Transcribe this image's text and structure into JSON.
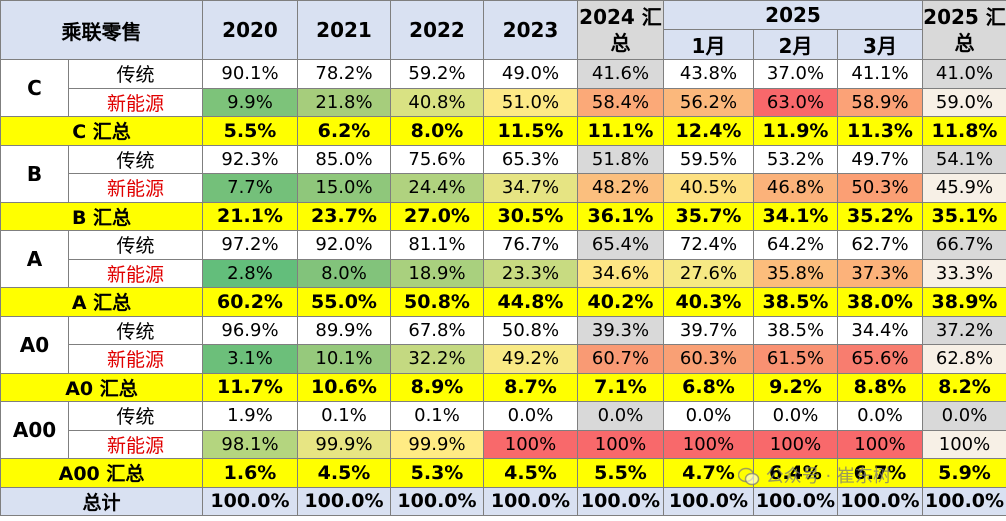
{
  "header": {
    "title": "乘联零售",
    "years": [
      "2020",
      "2021",
      "2022",
      "2023"
    ],
    "total_2024": "2024 汇总",
    "year_2025": "2025",
    "months": [
      "1月",
      "2月",
      "3月"
    ],
    "total_2025": "2025 汇总"
  },
  "row_labels": {
    "traditional": "传统",
    "nev": "新能源"
  },
  "segments": [
    {
      "name": "C",
      "traditional": [
        "90.1%",
        "78.2%",
        "59.2%",
        "49.0%",
        "41.6%",
        "43.8%",
        "37.0%",
        "41.1%",
        "41.0%"
      ],
      "nev": [
        "9.9%",
        "21.8%",
        "40.8%",
        "51.0%",
        "58.4%",
        "56.2%",
        "63.0%",
        "58.9%",
        "59.0%"
      ],
      "sum_label": "C 汇总",
      "sum": [
        "5.5%",
        "6.2%",
        "8.0%",
        "11.5%",
        "11.1%",
        "12.4%",
        "11.9%",
        "11.3%",
        "11.8%"
      ]
    },
    {
      "name": "B",
      "traditional": [
        "92.3%",
        "85.0%",
        "75.6%",
        "65.3%",
        "51.8%",
        "59.5%",
        "53.2%",
        "49.7%",
        "54.1%"
      ],
      "nev": [
        "7.7%",
        "15.0%",
        "24.4%",
        "34.7%",
        "48.2%",
        "40.5%",
        "46.8%",
        "50.3%",
        "45.9%"
      ],
      "sum_label": "B 汇总",
      "sum": [
        "21.1%",
        "23.7%",
        "27.0%",
        "30.5%",
        "36.1%",
        "35.7%",
        "34.1%",
        "35.2%",
        "35.1%"
      ]
    },
    {
      "name": "A",
      "traditional": [
        "97.2%",
        "92.0%",
        "81.1%",
        "76.7%",
        "65.4%",
        "72.4%",
        "64.2%",
        "62.7%",
        "66.7%"
      ],
      "nev": [
        "2.8%",
        "8.0%",
        "18.9%",
        "23.3%",
        "34.6%",
        "27.6%",
        "35.8%",
        "37.3%",
        "33.3%"
      ],
      "sum_label": "A 汇总",
      "sum": [
        "60.2%",
        "55.0%",
        "50.8%",
        "44.8%",
        "40.2%",
        "40.3%",
        "38.5%",
        "38.0%",
        "38.9%"
      ]
    },
    {
      "name": "A0",
      "traditional": [
        "96.9%",
        "89.9%",
        "67.8%",
        "50.8%",
        "39.3%",
        "39.7%",
        "38.5%",
        "34.4%",
        "37.2%"
      ],
      "nev": [
        "3.1%",
        "10.1%",
        "32.2%",
        "49.2%",
        "60.7%",
        "60.3%",
        "61.5%",
        "65.6%",
        "62.8%"
      ],
      "sum_label": "A0 汇总",
      "sum": [
        "11.7%",
        "10.6%",
        "8.9%",
        "8.7%",
        "7.1%",
        "6.8%",
        "9.2%",
        "8.8%",
        "8.2%"
      ]
    },
    {
      "name": "A00",
      "traditional": [
        "1.9%",
        "0.1%",
        "0.1%",
        "0.0%",
        "0.0%",
        "0.0%",
        "0.0%",
        "0.0%",
        "0.0%"
      ],
      "nev": [
        "98.1%",
        "99.9%",
        "99.9%",
        "100%",
        "100%",
        "100%",
        "100%",
        "100%",
        "100%"
      ],
      "sum_label": "A00 汇总",
      "sum": [
        "1.6%",
        "4.5%",
        "5.3%",
        "4.5%",
        "5.5%",
        "4.7%",
        "6.4%",
        "6.7%",
        "5.9%"
      ]
    }
  ],
  "total": {
    "label": "总计",
    "values": [
      "100.0%",
      "100.0%",
      "100.0%",
      "100.0%",
      "100.0%",
      "100.0%",
      "100.0%",
      "100.0%",
      "100.0%"
    ]
  },
  "nev_colors": {
    "C": [
      "#7dc37a",
      "#a6cd7c",
      "#d9e283",
      "#fde987",
      "#fba978",
      "#fbb87c",
      "#f8686b",
      "#fba277",
      "#f7f0e6"
    ],
    "B": [
      "#74c07a",
      "#8fc77b",
      "#b0d27f",
      "#e6e483",
      "#fbbf7e",
      "#fde082",
      "#fbb27a",
      "#fb9f74",
      "#f7f0e6"
    ],
    "A": [
      "#63be7b",
      "#82c37b",
      "#a9d07e",
      "#c8db81",
      "#fde584",
      "#f6e984",
      "#fcbd7c",
      "#fcb27a",
      "#f7f0e6"
    ],
    "A0": [
      "#6cbf7a",
      "#96c97c",
      "#c4d981",
      "#f8e984",
      "#f99a74",
      "#f9a075",
      "#f99172",
      "#f87d6f",
      "#f7f0e6"
    ],
    "A00": [
      "#b4d57f",
      "#e7e583",
      "#ffeb84",
      "#f8696b",
      "#f8696b",
      "#f8696b",
      "#f8696b",
      "#f8696b",
      "#f7f0e6"
    ]
  },
  "watermark": "公众号 · 崔东树"
}
